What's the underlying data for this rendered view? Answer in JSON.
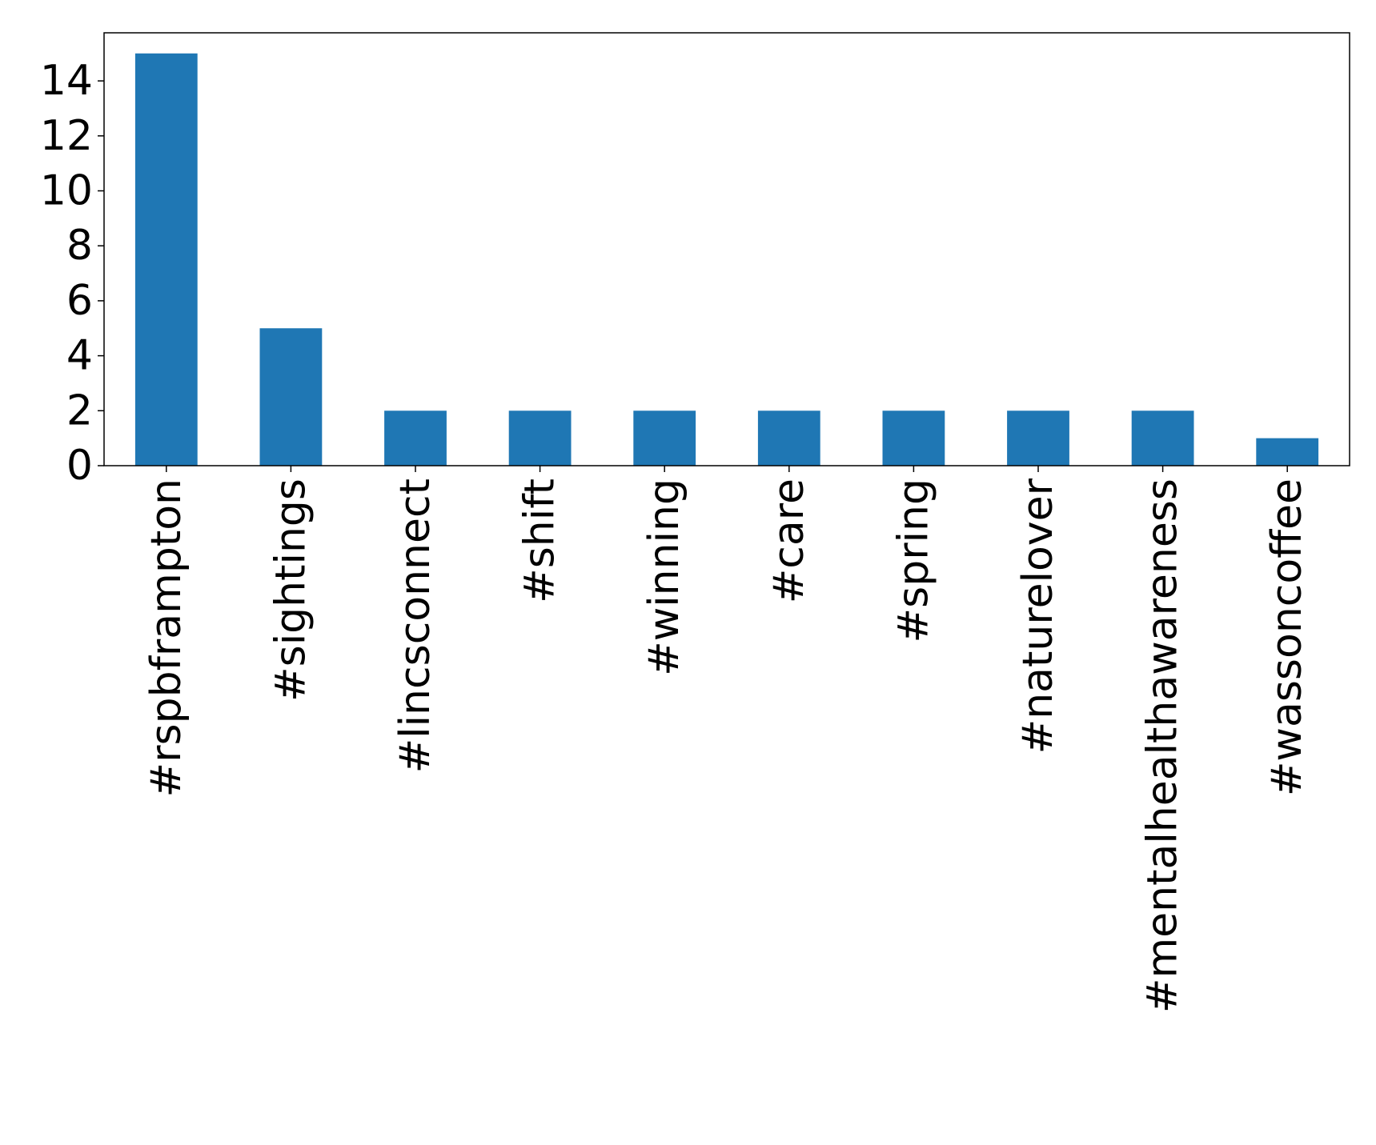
{
  "chart_data": {
    "type": "bar",
    "title": "",
    "xlabel": "",
    "ylabel": "",
    "categories": [
      "#rspbframpton",
      "#sightings",
      "#lincsconnect",
      "#shift",
      "#winning",
      "#care",
      "#spring",
      "#naturelover",
      "#mentalhealthawareness",
      "#wassoncoffee"
    ],
    "values": [
      15,
      5,
      2,
      2,
      2,
      2,
      2,
      2,
      2,
      1
    ],
    "ylim": [
      0,
      15.75
    ],
    "yticks": [
      0,
      2,
      4,
      6,
      8,
      10,
      12,
      14
    ],
    "grid": false,
    "legend": "none",
    "colors": {
      "bar": "#1f77b4",
      "axis": "#000000",
      "background": "#ffffff"
    }
  }
}
